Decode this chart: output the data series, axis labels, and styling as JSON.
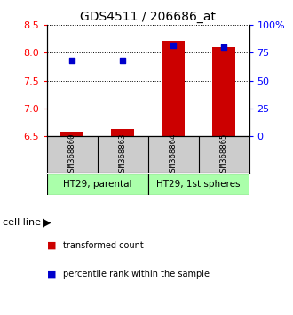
{
  "title": "GDS4511 / 206686_at",
  "samples": [
    "GSM368860",
    "GSM368863",
    "GSM368864",
    "GSM368865"
  ],
  "transformed_count": [
    6.58,
    6.62,
    8.22,
    8.1
  ],
  "percentile_rank": [
    68,
    68,
    82,
    80
  ],
  "ylim_left": [
    6.5,
    8.5
  ],
  "ylim_right": [
    0,
    100
  ],
  "yticks_left": [
    6.5,
    7.0,
    7.5,
    8.0,
    8.5
  ],
  "yticks_right": [
    0,
    25,
    50,
    75,
    100
  ],
  "ytick_labels_right": [
    "0",
    "25",
    "50",
    "75",
    "100%"
  ],
  "bar_color": "#cc0000",
  "dot_color": "#0000cc",
  "groups": [
    {
      "label": "HT29, parental",
      "indices": [
        0,
        1
      ],
      "color": "#aaffaa"
    },
    {
      "label": "HT29, 1st spheres",
      "indices": [
        2,
        3
      ],
      "color": "#aaffaa"
    }
  ],
  "cell_line_label": "cell line",
  "legend_bar_label": "transformed count",
  "legend_dot_label": "percentile rank within the sample",
  "background_color": "#ffffff",
  "sample_box_color": "#cccccc"
}
